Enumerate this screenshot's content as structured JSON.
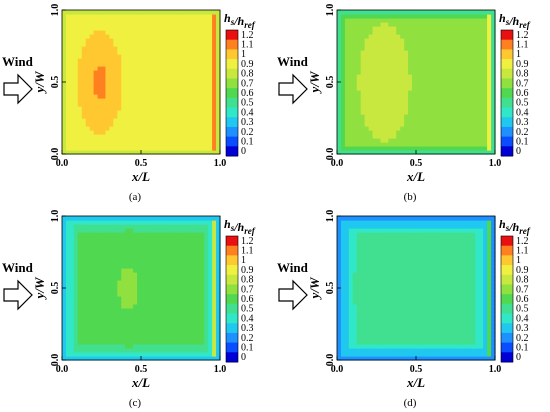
{
  "chart_data": [
    {
      "type": "heatmap",
      "panel": "(a)",
      "xlabel": "x/L",
      "ylabel": "y/W",
      "xlim": [
        0,
        1
      ],
      "ylim": [
        0,
        1
      ],
      "xticks": [
        "0.0",
        "0.5",
        "1.0"
      ],
      "yticks": [
        "0.0",
        "0.5",
        "1.0"
      ],
      "colorbar_title": "hs/href",
      "colorbar_ticks": [
        "1.2",
        "1.1",
        "1",
        "0.9",
        "0.8",
        "0.7",
        "0.6",
        "0.5",
        "0.4",
        "0.3",
        "0.2",
        "0.1",
        "0"
      ],
      "wind_label": "Wind",
      "field": {
        "base": 0.95,
        "edge": 0.82,
        "core_peak": 1.12,
        "core_x": 0.24,
        "core_y": 0.5,
        "edge_width": 0.05
      }
    },
    {
      "type": "heatmap",
      "panel": "(b)",
      "xlabel": "x/L",
      "ylabel": "y/W",
      "xlim": [
        0,
        1
      ],
      "ylim": [
        0,
        1
      ],
      "xticks": [
        "0.0",
        "0.5",
        "1.0"
      ],
      "yticks": [
        "0.0",
        "0.5",
        "1.0"
      ],
      "colorbar_title": "hs/href",
      "colorbar_ticks": [
        "1.2",
        "1.1",
        "1",
        "0.9",
        "0.8",
        "0.7",
        "0.6",
        "0.5",
        "0.4",
        "0.3",
        "0.2",
        "0.1",
        "0"
      ],
      "wind_label": "Wind",
      "field": {
        "base": 0.78,
        "edge": 0.45,
        "core_peak": 0.88,
        "core_x": 0.3,
        "core_y": 0.5,
        "edge_width": 0.07
      }
    },
    {
      "type": "heatmap",
      "panel": "(c)",
      "xlabel": "x/L",
      "ylabel": "y/W",
      "xlim": [
        0,
        1
      ],
      "ylim": [
        0,
        1
      ],
      "xticks": [
        "0.0",
        "0.5",
        "1.0"
      ],
      "yticks": [
        "0.0",
        "0.5",
        "1.0"
      ],
      "colorbar_title": "hs/href",
      "colorbar_ticks": [
        "1.2",
        "1.1",
        "1",
        "0.9",
        "0.8",
        "0.7",
        "0.6",
        "0.5",
        "0.4",
        "0.3",
        "0.2",
        "0.1",
        "0"
      ],
      "wind_label": "Wind",
      "field": {
        "base": 0.62,
        "edge": 0.3,
        "core_peak": 0.72,
        "core_x": 0.42,
        "core_y": 0.5,
        "edge_width": 0.11
      }
    },
    {
      "type": "heatmap",
      "panel": "(d)",
      "xlabel": "x/L",
      "ylabel": "y/W",
      "xlim": [
        0,
        1
      ],
      "ylim": [
        0,
        1
      ],
      "xticks": [
        "0.0",
        "0.5",
        "1.0"
      ],
      "yticks": [
        "0.0",
        "0.5",
        "1.0"
      ],
      "colorbar_title": "hs/href",
      "colorbar_ticks": [
        "1.2",
        "1.1",
        "1",
        "0.9",
        "0.8",
        "0.7",
        "0.6",
        "0.5",
        "0.4",
        "0.3",
        "0.2",
        "0.1",
        "0"
      ],
      "wind_label": "Wind",
      "field": {
        "base": 0.5,
        "edge": 0.25,
        "core_peak": 0.52,
        "core_x": 0.15,
        "core_y": 0.5,
        "edge_width": 0.12
      }
    }
  ],
  "colormap": [
    "#0000d6",
    "#0a4cff",
    "#1e90ff",
    "#20c8f0",
    "#30e8c8",
    "#40e090",
    "#50d850",
    "#90e040",
    "#c8e840",
    "#f0f040",
    "#ffc830",
    "#ff8020",
    "#e81010"
  ]
}
